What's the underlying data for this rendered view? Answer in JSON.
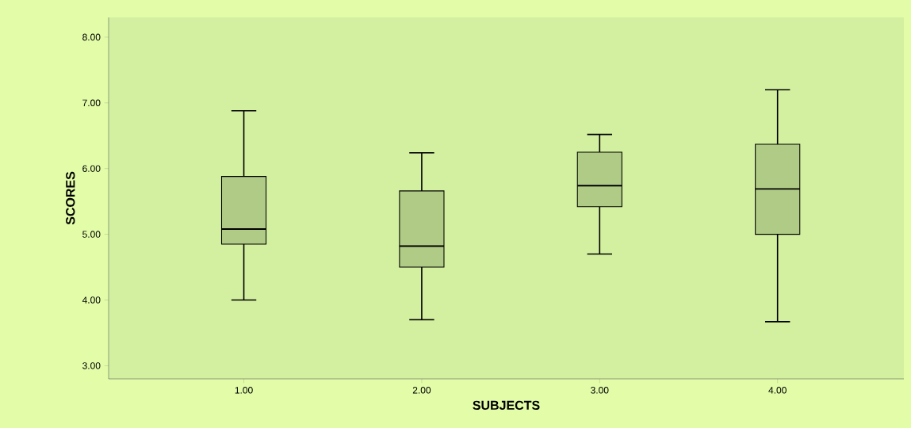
{
  "chart_data": {
    "type": "box",
    "xlabel": "SUBJECTS",
    "ylabel": "SCORES",
    "categories": [
      "1.00",
      "2.00",
      "3.00",
      "4.00"
    ],
    "boxes": [
      {
        "low": 4.0,
        "q1": 4.85,
        "median": 5.08,
        "q3": 5.88,
        "high": 6.88
      },
      {
        "low": 3.7,
        "q1": 4.5,
        "median": 4.82,
        "q3": 5.66,
        "high": 6.24
      },
      {
        "low": 4.7,
        "q1": 5.42,
        "median": 5.74,
        "q3": 6.25,
        "high": 6.52
      },
      {
        "low": 3.67,
        "q1": 5.0,
        "median": 5.69,
        "q3": 6.37,
        "high": 7.2
      }
    ],
    "color": "#b0cb85",
    "ylim": [
      2.8,
      8.3
    ],
    "yticks": [
      {
        "value": 3,
        "label": "3.00"
      },
      {
        "value": 4,
        "label": "4.00"
      },
      {
        "value": 5,
        "label": "5.00"
      },
      {
        "value": 6,
        "label": "6.00"
      },
      {
        "value": 7,
        "label": "7.00"
      },
      {
        "value": 8,
        "label": "8.00"
      }
    ]
  }
}
